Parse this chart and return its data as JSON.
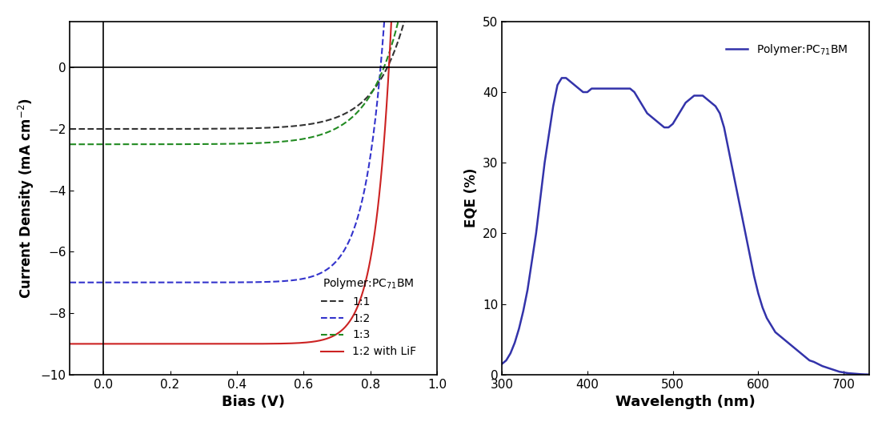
{
  "jv_xlim": [
    -0.1,
    1.0
  ],
  "jv_ylim": [
    -10,
    1.5
  ],
  "jv_xlabel": "Bias (V)",
  "jv_ylabel": "Current Density (mA cm⁻²)",
  "eqe_xlim": [
    300,
    730
  ],
  "eqe_ylim": [
    0,
    50
  ],
  "eqe_xlabel": "Wavelength (nm)",
  "eqe_ylabel": "EQE (%)",
  "legend_title": "Polymer:PC₇₁BM",
  "jv_legend_labels": [
    "1:1",
    "1:2",
    "1:3",
    "1:2 with LiF"
  ],
  "jv_colors": [
    "#333333",
    "#3333cc",
    "#228B22",
    "#cc2222"
  ],
  "jv_linestyles": [
    "--",
    "--",
    "--",
    "-"
  ],
  "eqe_color": "#3333aa",
  "eqe_legend_label": "Polymer:PC₇₁BM"
}
